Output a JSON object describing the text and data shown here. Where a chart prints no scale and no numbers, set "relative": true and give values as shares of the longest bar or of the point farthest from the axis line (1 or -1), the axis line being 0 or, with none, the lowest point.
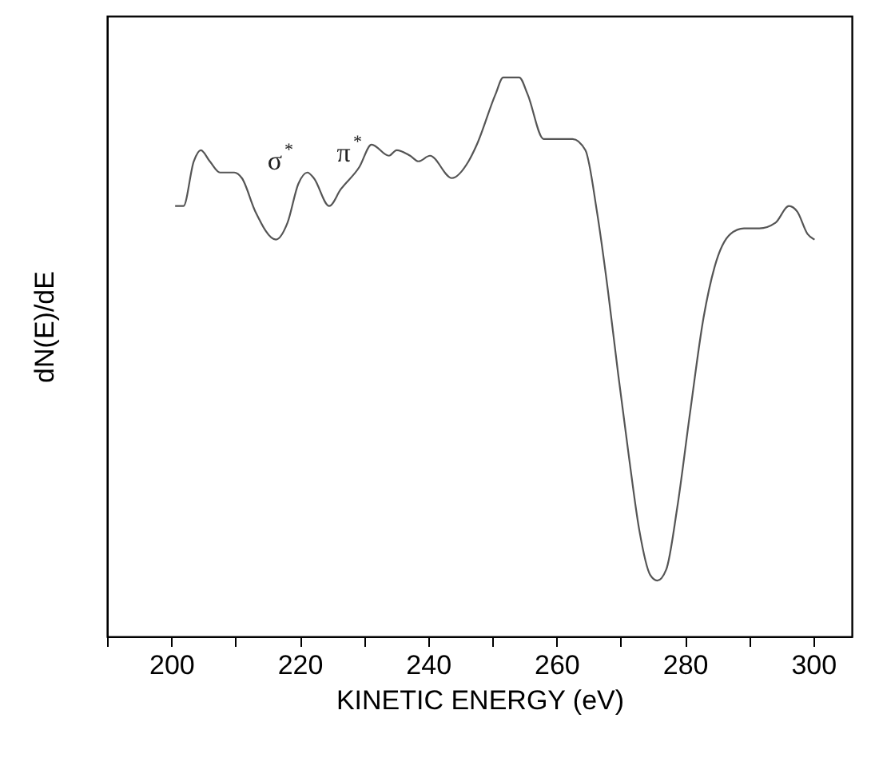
{
  "chart_data": {
    "type": "line",
    "relative": true,
    "xlabel": "KINETIC ENERGY (eV)",
    "ylabel": "dN(E)/dE",
    "xlim": [
      190,
      306
    ],
    "xticks": [
      {
        "value": 190,
        "label": null
      },
      200,
      {
        "value": 210,
        "label": null
      },
      220,
      {
        "value": 230,
        "label": null
      },
      240,
      {
        "value": 250,
        "label": null
      },
      260,
      {
        "value": 270,
        "label": null
      },
      280,
      {
        "value": 290,
        "label": null
      },
      300
    ],
    "grid": false,
    "marker": "none",
    "line_style": "solid",
    "annotations": [
      "σ$^{*}$",
      "π$^{*}$"
    ],
    "series": [
      {
        "color": "#555555",
        "x": [
          200.6,
          201.9,
          203.5,
          204.6,
          206,
          207.6,
          209.8,
          211,
          213.1,
          216.3,
          218.1,
          219.8,
          221.2,
          222.2,
          224.6,
          226.4,
          229.3,
          231.2,
          233.9,
          235.1,
          237.2,
          238.5,
          240.3,
          243.7,
          246.3,
          247.6,
          250.5,
          251.7,
          254.2,
          255.5,
          258,
          260.5,
          262.5,
          264.5,
          266.3,
          268,
          269.6,
          271.3,
          272.9,
          274.6,
          275.7,
          277.1,
          278.8,
          280.8,
          282.9,
          284.6,
          287.1,
          289.2,
          291.6,
          294.1,
          296.2,
          297.5,
          299.1,
          300.2
        ],
        "values": [
          0.77,
          0.77,
          0.85,
          0.87,
          0.85,
          0.83,
          0.83,
          0.82,
          0.76,
          0.71,
          0.74,
          0.81,
          0.83,
          0.82,
          0.77,
          0.8,
          0.84,
          0.88,
          0.86,
          0.87,
          0.86,
          0.85,
          0.86,
          0.82,
          0.85,
          0.88,
          0.97,
          1,
          1,
          0.97,
          0.89,
          0.89,
          0.89,
          0.87,
          0.76,
          0.62,
          0.47,
          0.32,
          0.19,
          0.11,
          0.1,
          0.12,
          0.23,
          0.4,
          0.57,
          0.66,
          0.72,
          0.73,
          0.73,
          0.74,
          0.77,
          0.76,
          0.72,
          0.71
        ]
      }
    ]
  }
}
